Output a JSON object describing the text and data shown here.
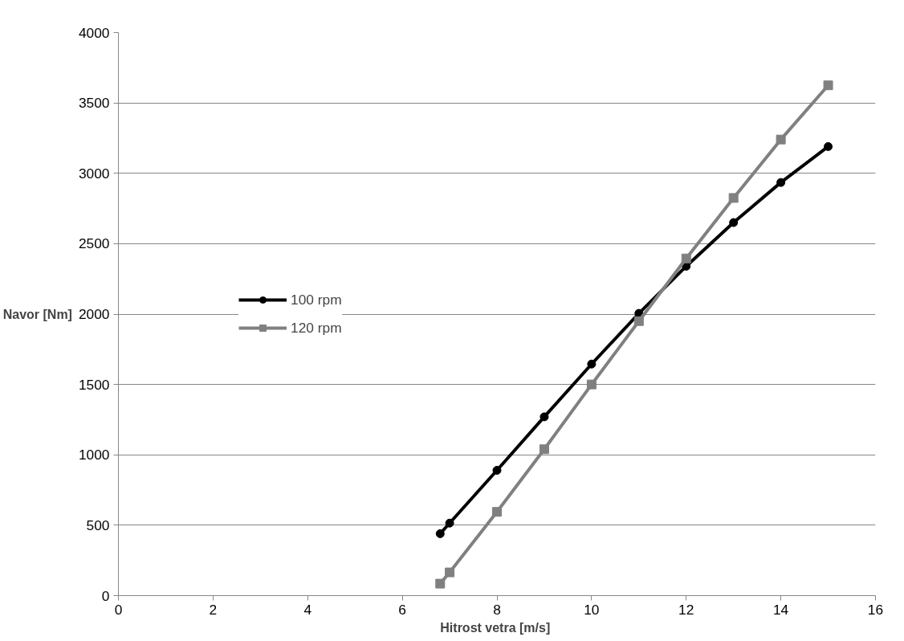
{
  "chart_data": {
    "type": "line",
    "xlabel": "Hitrost vetra  [m/s]",
    "ylabel": "Navor [Nm]",
    "xlim": [
      0,
      16
    ],
    "xticks": [
      0,
      2,
      4,
      6,
      8,
      10,
      12,
      14,
      16
    ],
    "ylim": [
      0,
      4000
    ],
    "yticks": [
      0,
      500,
      1000,
      1500,
      2000,
      2500,
      3000,
      3500,
      4000
    ],
    "grid": "y",
    "legend": "left",
    "line_style": "solid",
    "series": [
      {
        "name": "100 rpm",
        "color": "#000000",
        "marker": "circle",
        "x": [
          6.8,
          7,
          8,
          9,
          10,
          11,
          12,
          13,
          14,
          15
        ],
        "values": [
          440,
          515,
          890,
          1270,
          1645,
          2005,
          2340,
          2650,
          2935,
          3190
        ]
      },
      {
        "name": "120 rpm",
        "color": "#808080",
        "marker": "square",
        "x": [
          6.8,
          7,
          8,
          9,
          10,
          11,
          12,
          13,
          14,
          15
        ],
        "values": [
          85,
          165,
          595,
          1040,
          1500,
          1950,
          2395,
          2825,
          3240,
          3625
        ]
      }
    ]
  }
}
